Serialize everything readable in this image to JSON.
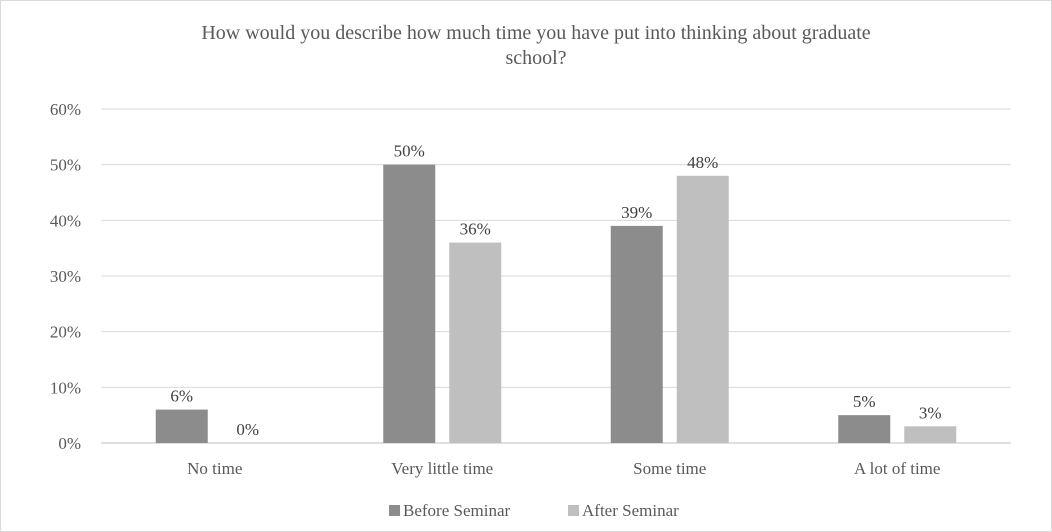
{
  "chart_data": {
    "type": "bar",
    "title": "How would you describe how much time you have put into thinking about graduate school?",
    "title_lines": [
      "How would you describe how much time you have put into thinking about graduate",
      "school?"
    ],
    "categories": [
      "No time",
      "Very little time",
      "Some time",
      "A lot of time"
    ],
    "series": [
      {
        "name": "Before Seminar",
        "color": "#8c8c8c",
        "values": [
          6,
          50,
          39,
          5
        ],
        "labels": [
          "6%",
          "50%",
          "39%",
          "5%"
        ]
      },
      {
        "name": "After Seminar",
        "color": "#bfbfbf",
        "values": [
          0,
          36,
          48,
          3
        ],
        "labels": [
          "0%",
          "36%",
          "48%",
          "3%"
        ]
      }
    ],
    "ylim": [
      0,
      60
    ],
    "yticks": [
      0,
      10,
      20,
      30,
      40,
      50,
      60
    ],
    "ytick_labels": [
      "0%",
      "10%",
      "20%",
      "30%",
      "40%",
      "50%",
      "60%"
    ],
    "grid": true,
    "legend_position": "bottom",
    "xlabel": "",
    "ylabel": ""
  }
}
